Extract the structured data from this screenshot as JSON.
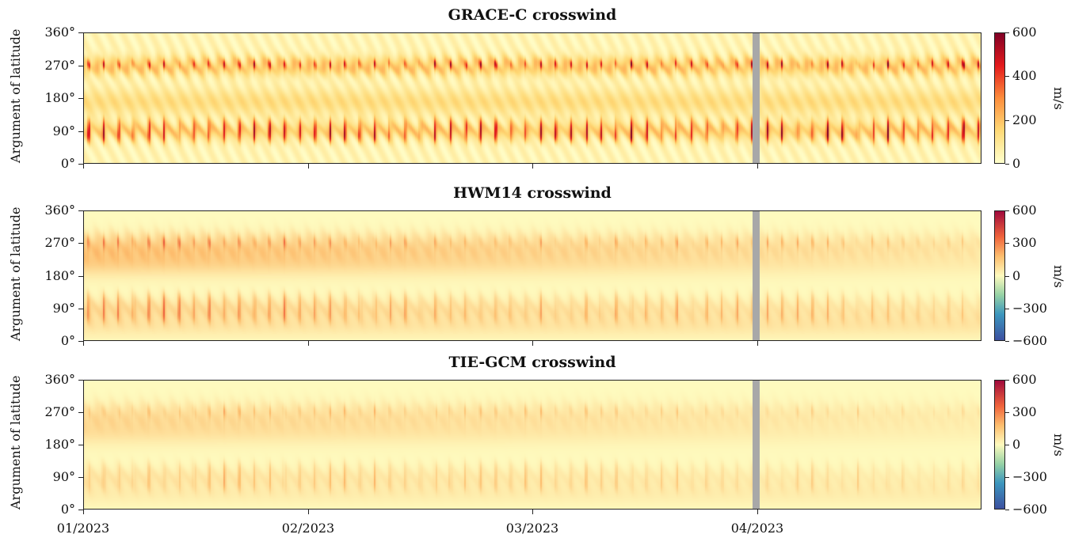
{
  "chart_data": [
    {
      "type": "heatmap",
      "title": "GRACE-C crosswind",
      "ylabel": "Argument of latitude",
      "yticks": [
        "0°",
        "90°",
        "180°",
        "270°",
        "360°"
      ],
      "ylim": [
        0,
        360
      ],
      "xticks": [
        "01/2023",
        "02/2023",
        "03/2023",
        "04/2023"
      ],
      "colorbar": {
        "label": "m/s",
        "ticks": [
          "0",
          "200",
          "400",
          "600"
        ],
        "range": [
          0,
          600
        ],
        "colormap": "yellow-red"
      },
      "data_gap": "end of 03/2023",
      "bands": [
        {
          "center_deg": 90,
          "max_speed": 600
        },
        {
          "center_deg": 270,
          "max_speed": 600
        }
      ]
    },
    {
      "type": "heatmap",
      "title": "HWM14 crosswind",
      "ylabel": "Argument of latitude",
      "yticks": [
        "0°",
        "90°",
        "180°",
        "270°",
        "360°"
      ],
      "ylim": [
        0,
        360
      ],
      "xticks": [
        "01/2023",
        "02/2023",
        "03/2023",
        "04/2023"
      ],
      "colorbar": {
        "label": "m/s",
        "ticks": [
          "−600",
          "−300",
          "0",
          "300",
          "600"
        ],
        "range": [
          -600,
          600
        ],
        "colormap": "Spectral_r"
      },
      "data_gap": "end of 03/2023",
      "bands": [
        {
          "center_deg": 90,
          "max_speed": 400
        },
        {
          "center_deg": 270,
          "max_speed": 400
        }
      ]
    },
    {
      "type": "heatmap",
      "title": "TIE-GCM crosswind",
      "ylabel": "Argument of latitude",
      "yticks": [
        "0°",
        "90°",
        "180°",
        "270°",
        "360°"
      ],
      "ylim": [
        0,
        360
      ],
      "xticks": [
        "01/2023",
        "02/2023",
        "03/2023",
        "04/2023"
      ],
      "colorbar": {
        "label": "m/s",
        "ticks": [
          "−600",
          "−300",
          "0",
          "300",
          "600"
        ],
        "range": [
          -600,
          600
        ],
        "colormap": "Spectral_r"
      },
      "data_gap": "end of 03/2023",
      "bands": [
        {
          "center_deg": 90,
          "max_speed": 250
        },
        {
          "center_deg": 270,
          "max_speed": 250
        }
      ]
    }
  ],
  "colors": {
    "low": "#fef6be",
    "mid": "#f9b862",
    "high": "#b2182b",
    "negative": "#3b5ea8",
    "gap": "#a8a8a8"
  }
}
